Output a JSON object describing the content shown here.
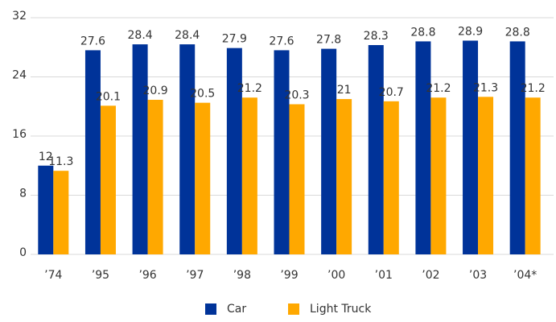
{
  "chart_data": {
    "type": "bar",
    "categories": [
      "’74",
      "’95",
      "’96",
      "’97",
      "’98",
      "’99",
      "’00",
      "’01",
      "’02",
      "’03",
      "’04*"
    ],
    "series": [
      {
        "name": "Car",
        "color": "#003399",
        "values": [
          12,
          27.6,
          28.4,
          28.4,
          27.9,
          27.6,
          27.8,
          28.3,
          28.8,
          28.9,
          28.8
        ]
      },
      {
        "name": "Light Truck",
        "color": "#ffa800",
        "values": [
          11.3,
          20.1,
          20.9,
          20.5,
          21.2,
          20.3,
          21,
          20.7,
          21.2,
          21.3,
          21.2
        ]
      }
    ],
    "ylim": [
      0,
      32
    ],
    "yticks": [
      0,
      8,
      16,
      24,
      32
    ],
    "grid": true,
    "legend": "bottom"
  }
}
